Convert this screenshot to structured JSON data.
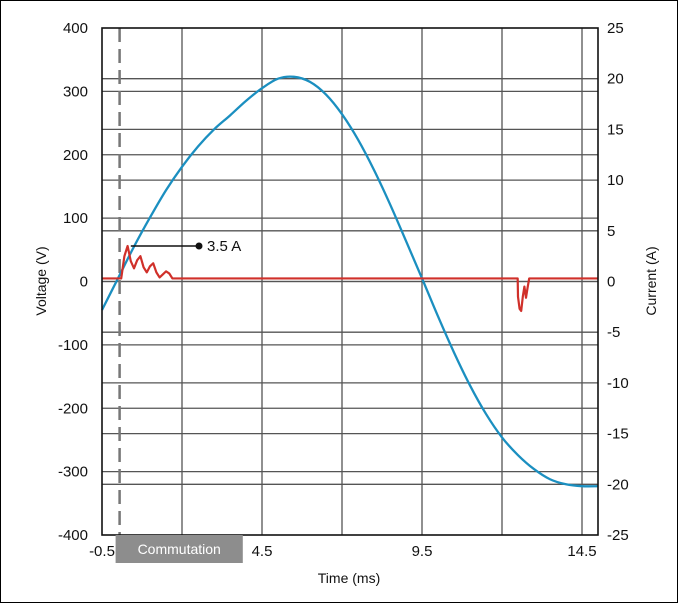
{
  "chart_data": {
    "type": "line",
    "title": "",
    "xlabel": "Time (ms)",
    "ylabel_left": "Voltage (V)",
    "ylabel_right": "Current (A)",
    "xlim": [
      -0.5,
      15
    ],
    "ylim_left": [
      -400,
      400
    ],
    "ylim_right": [
      -25,
      25
    ],
    "grid": true,
    "x_ticks": [
      "-0.5",
      "4.5",
      "9.5",
      "14.5"
    ],
    "y_left_ticks": [
      "400",
      "300",
      "200",
      "100",
      "0",
      "-100",
      "-200",
      "-300",
      "-400"
    ],
    "y_right_ticks": [
      "25",
      "20",
      "15",
      "10",
      "5",
      "0",
      "-5",
      "-10",
      "-15",
      "-20",
      "-25"
    ],
    "series": [
      {
        "axis": "left",
        "color": "#1b8fc0",
        "x": [
          -0.5,
          0.0,
          0.5,
          1.0,
          1.5,
          2.0,
          2.5,
          3.0,
          3.5,
          4.0,
          4.5,
          5.0,
          5.5,
          6.0,
          6.5,
          7.0,
          7.5,
          8.0,
          8.5,
          9.0,
          9.5,
          10.0,
          10.5,
          11.0,
          11.5,
          12.0,
          12.5,
          13.0,
          13.5,
          14.0,
          14.5,
          15.0
        ],
        "values": [
          -45,
          5,
          55,
          101,
          144,
          181,
          213,
          240,
          262,
          285,
          305,
          320,
          323,
          315,
          295,
          264,
          224,
          176,
          122,
          64,
          5,
          -55,
          -112,
          -164,
          -209,
          -246,
          -274,
          -296,
          -312,
          -320,
          -323,
          -323
        ]
      },
      {
        "axis": "right",
        "color": "#d0302a",
        "x": [
          -0.5,
          0.1,
          0.2,
          0.3,
          0.4,
          0.5,
          0.6,
          0.7,
          0.8,
          0.9,
          1.0,
          1.1,
          1.2,
          1.3,
          1.4,
          1.5,
          1.6,
          1.7,
          1.8,
          1.9,
          2.0,
          12.49,
          12.5,
          12.55,
          12.6,
          12.65,
          12.7,
          12.75,
          12.8,
          12.85,
          12.9,
          13.0,
          15.0
        ],
        "values": [
          0.3,
          0.3,
          2.5,
          3.5,
          2.0,
          1.3,
          2.1,
          2.5,
          1.4,
          0.9,
          1.5,
          1.8,
          0.9,
          0.4,
          0.7,
          1.0,
          0.8,
          0.3,
          0.3,
          0.3,
          0.3,
          0.3,
          -1.5,
          -2.7,
          -2.9,
          -1.5,
          -0.5,
          -1.6,
          -0.6,
          0.3,
          0.3,
          0.3,
          0.3
        ]
      }
    ],
    "annotation": {
      "text": "3.5 A",
      "x": 0.4,
      "y": 3.5,
      "axis": "right"
    },
    "commutation": {
      "label": "Commutation",
      "x_start": 0.05,
      "x_end": 3.9,
      "marker_x": 0.05
    }
  }
}
